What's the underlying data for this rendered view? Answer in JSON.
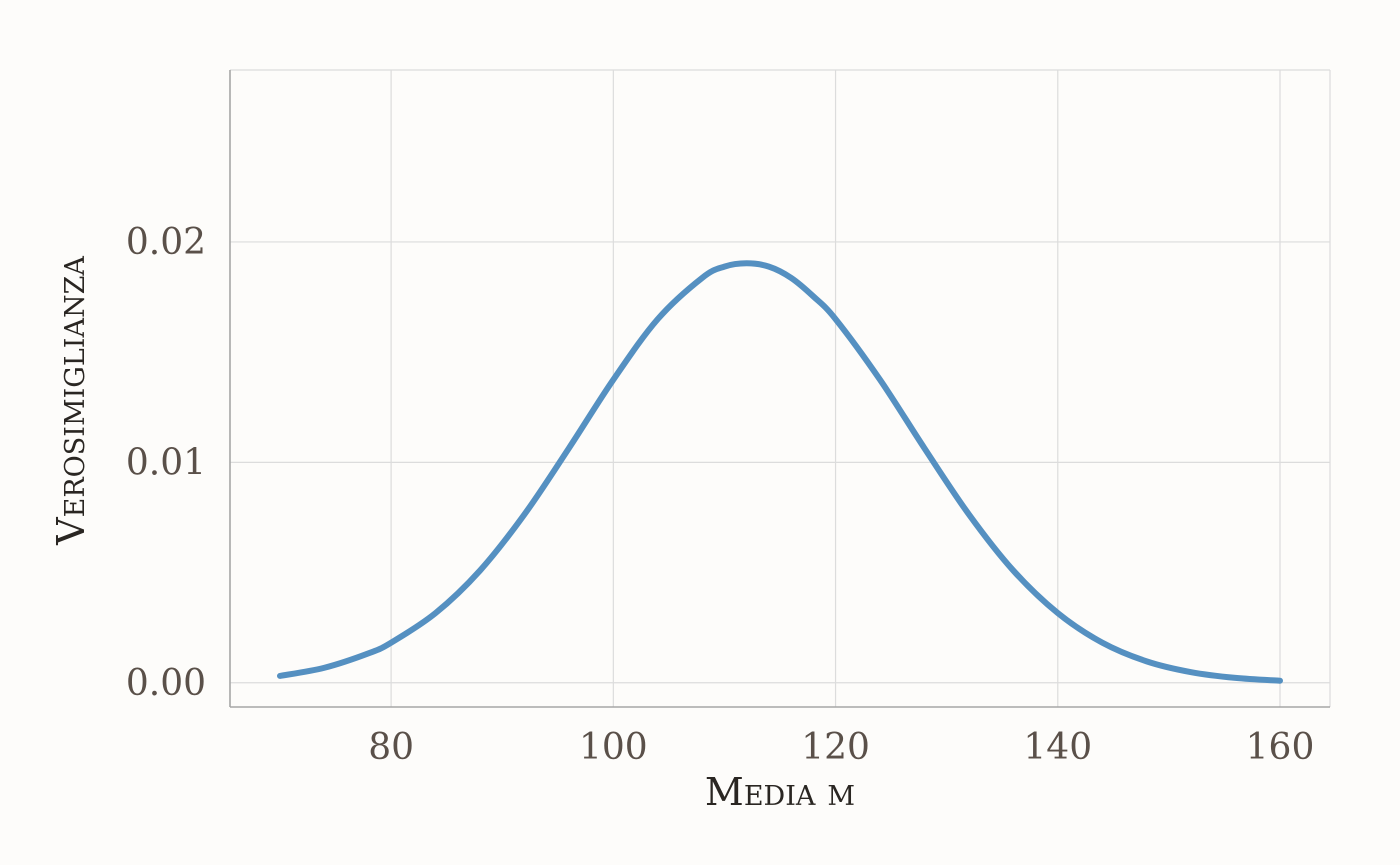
{
  "chart_data": {
    "type": "line",
    "xlabel": "Media μ",
    "ylabel": "Verosimiglianza",
    "xlim": [
      65.5,
      164.5
    ],
    "ylim": [
      -0.0011,
      0.0278
    ],
    "x_ticks": [
      80,
      100,
      120,
      140,
      160
    ],
    "x_tick_labels": [
      "80",
      "100",
      "120",
      "140",
      "160"
    ],
    "y_ticks": [
      0.0,
      0.01,
      0.02
    ],
    "y_tick_labels": [
      "0.00",
      "0.01",
      "0.02"
    ],
    "grid": true,
    "series": [
      {
        "color": "#5590c1",
        "x": [
          70,
          74,
          78,
          80,
          84,
          88,
          92,
          96,
          100,
          104,
          108,
          110,
          112,
          114,
          116,
          118,
          120,
          124,
          128,
          132,
          136,
          140,
          144,
          148,
          152,
          156,
          160
        ],
        "y": [
          0.00031,
          0.00068,
          0.00134,
          0.00182,
          0.00316,
          0.00509,
          0.00764,
          0.01064,
          0.01375,
          0.0165,
          0.01837,
          0.01888,
          0.01903,
          0.01888,
          0.01837,
          0.01753,
          0.0165,
          0.01375,
          0.01064,
          0.00764,
          0.00509,
          0.00316,
          0.00182,
          0.00097,
          0.00048,
          0.00022,
          9e-05
        ]
      }
    ]
  }
}
